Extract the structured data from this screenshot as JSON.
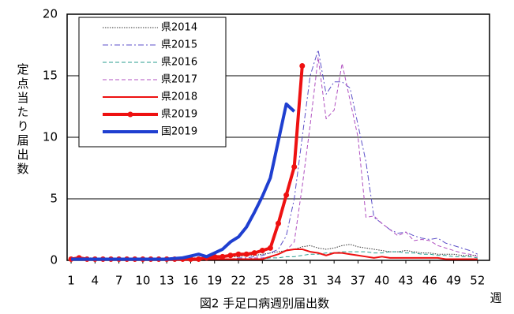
{
  "chart_data": {
    "type": "line",
    "title": "図2 手足口病週別届出数",
    "x_label": "週",
    "y_label": "定点当たり届出数",
    "x": [
      1,
      2,
      3,
      4,
      5,
      6,
      7,
      8,
      9,
      10,
      11,
      12,
      13,
      14,
      15,
      16,
      17,
      18,
      19,
      20,
      21,
      22,
      23,
      24,
      25,
      26,
      27,
      28,
      29,
      30,
      31,
      32,
      33,
      34,
      35,
      36,
      37,
      38,
      39,
      40,
      41,
      42,
      43,
      44,
      45,
      46,
      47,
      48,
      49,
      50,
      51,
      52
    ],
    "xlim": [
      0.5,
      53.5
    ],
    "xticks": [
      1,
      4,
      7,
      10,
      13,
      16,
      19,
      22,
      25,
      28,
      31,
      34,
      37,
      40,
      43,
      46,
      49,
      52
    ],
    "ylim": [
      0,
      20
    ],
    "yticks": [
      0,
      5,
      10,
      15,
      20
    ],
    "grid": true,
    "legend": "upper left",
    "series": [
      {
        "name": "県2014",
        "color": "#333333",
        "style": "dotted",
        "width": 1,
        "values": [
          0.2,
          0.2,
          0.2,
          0.2,
          0.1,
          0.1,
          0.1,
          0.1,
          0.1,
          0.1,
          0.1,
          0.1,
          0.1,
          0.1,
          0.1,
          0.2,
          0.2,
          0.2,
          0.2,
          0.3,
          0.3,
          0.3,
          0.4,
          0.4,
          0.5,
          0.6,
          0.7,
          0.8,
          0.9,
          1.1,
          1.2,
          1.0,
          0.9,
          1.0,
          1.2,
          1.3,
          1.1,
          1.0,
          0.9,
          0.8,
          0.7,
          0.7,
          0.8,
          0.7,
          0.6,
          0.6,
          0.5,
          0.5,
          0.5,
          0.4,
          0.4,
          0.4
        ]
      },
      {
        "name": "県2015",
        "color": "#5b4fc8",
        "style": "dash-dot",
        "width": 1,
        "values": [
          0.1,
          0.1,
          0.1,
          0.1,
          0.1,
          0.1,
          0.1,
          0.1,
          0.1,
          0.1,
          0.1,
          0.1,
          0.1,
          0.1,
          0.1,
          0.1,
          0.1,
          0.1,
          0.1,
          0.1,
          0.1,
          0.2,
          0.2,
          0.3,
          0.4,
          0.6,
          0.9,
          2,
          5,
          10,
          15,
          17.1,
          13.5,
          14.5,
          14.5,
          14,
          11,
          8,
          3.5,
          3,
          2.5,
          2.2,
          2.3,
          2,
          1.8,
          1.7,
          1.8,
          1.4,
          1.2,
          1,
          0.8,
          0.5
        ]
      },
      {
        "name": "県2016",
        "color": "#2a9d8f",
        "style": "dashed",
        "width": 1,
        "values": [
          0.1,
          0.1,
          0.1,
          0.1,
          0.1,
          0.1,
          0.1,
          0.1,
          0.1,
          0.1,
          0.1,
          0.1,
          0.1,
          0.1,
          0.1,
          0.1,
          0.1,
          0.1,
          0.1,
          0.1,
          0.1,
          0.1,
          0.1,
          0.1,
          0.1,
          0.2,
          0.2,
          0.3,
          0.3,
          0.4,
          0.5,
          0.5,
          0.6,
          0.6,
          0.7,
          0.7,
          0.7,
          0.7,
          0.6,
          0.6,
          0.7,
          0.7,
          0.6,
          0.6,
          0.5,
          0.5,
          0.4,
          0.4,
          0.3,
          0.3,
          0.3,
          0.2
        ]
      },
      {
        "name": "県2017",
        "color": "#b050c0",
        "style": "dashed",
        "width": 1,
        "values": [
          0.1,
          0.1,
          0.1,
          0.1,
          0.1,
          0.1,
          0.1,
          0.1,
          0.1,
          0.1,
          0.1,
          0.1,
          0.1,
          0.1,
          0.1,
          0.1,
          0.1,
          0.1,
          0.1,
          0.1,
          0.1,
          0.1,
          0.1,
          0.2,
          0.2,
          0.3,
          0.5,
          0.8,
          1.5,
          6,
          11,
          16.5,
          11.5,
          12.2,
          16,
          13,
          10,
          3.5,
          3.6,
          3,
          2.5,
          2,
          2.3,
          1.6,
          1.7,
          1.6,
          1.2,
          1,
          0.8,
          0.6,
          0.5,
          0.3
        ]
      },
      {
        "name": "県2018",
        "color": "#ee1111",
        "style": "solid",
        "width": 2,
        "values": [
          0.1,
          0.1,
          0.1,
          0.1,
          0.1,
          0.1,
          0.1,
          0.1,
          0.1,
          0.1,
          0.1,
          0.1,
          0.1,
          0.1,
          0.1,
          0.1,
          0.1,
          0.1,
          0.1,
          0.1,
          0.1,
          0.1,
          0.1,
          0.1,
          0.1,
          0.3,
          0.5,
          0.8,
          0.9,
          0.9,
          0.7,
          0.6,
          0.4,
          0.6,
          0.6,
          0.5,
          0.4,
          0.3,
          0.2,
          0.3,
          0.2,
          0.2,
          0.2,
          0.2,
          0.2,
          0.2,
          0.2,
          0.1,
          0.1,
          0.1,
          0.1,
          0.1
        ]
      },
      {
        "name": "県2019",
        "color": "#ee1111",
        "style": "solid",
        "width": 4,
        "marker": "circle",
        "values": [
          0.1,
          0.2,
          0.1,
          0.1,
          0.1,
          0.1,
          0.1,
          0.1,
          0.1,
          0.1,
          0.1,
          0.1,
          0.1,
          0.1,
          0.1,
          0.1,
          0.1,
          0.2,
          0.3,
          0.3,
          0.4,
          0.5,
          0.5,
          0.6,
          0.8,
          1.0,
          3.0,
          5.3,
          7.6,
          15.8,
          null,
          null,
          null,
          null,
          null,
          null,
          null,
          null,
          null,
          null,
          null,
          null,
          null,
          null,
          null,
          null,
          null,
          null,
          null,
          null,
          null,
          null
        ]
      },
      {
        "name": "国2019",
        "color": "#1f3fd0",
        "style": "solid",
        "width": 4,
        "values": [
          0.1,
          0.1,
          0.1,
          0.1,
          0.1,
          0.1,
          0.1,
          0.1,
          0.1,
          0.1,
          0.1,
          0.1,
          0.1,
          0.15,
          0.2,
          0.35,
          0.5,
          0.3,
          0.6,
          0.9,
          1.5,
          1.9,
          2.7,
          3.9,
          5.2,
          6.7,
          9.7,
          12.7,
          12.1,
          null,
          null,
          null,
          null,
          null,
          null,
          null,
          null,
          null,
          null,
          null,
          null,
          null,
          null,
          null,
          null,
          null,
          null,
          null,
          null,
          null,
          null,
          null
        ]
      }
    ]
  }
}
